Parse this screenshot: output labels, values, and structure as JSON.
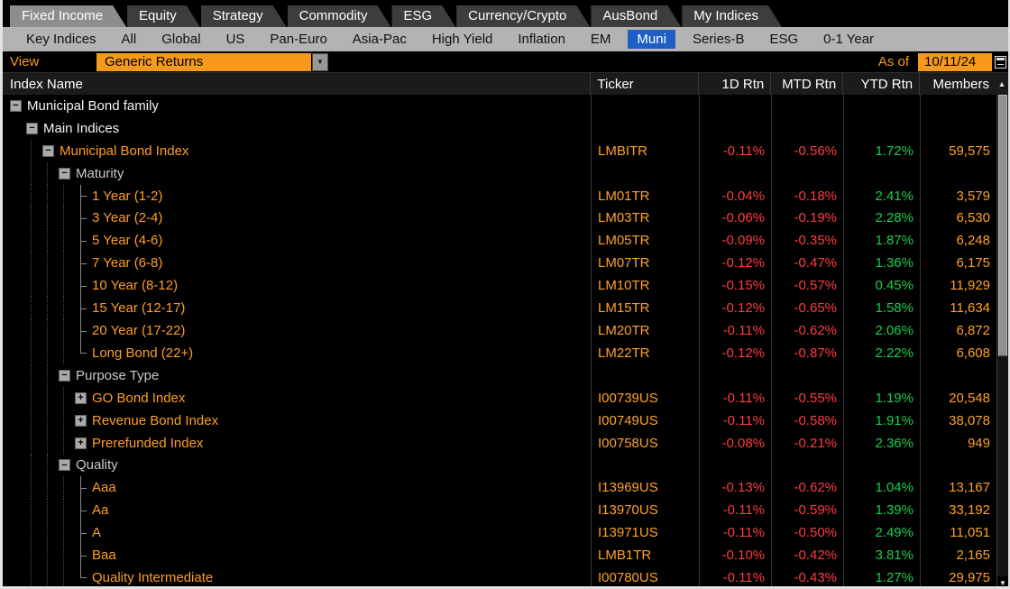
{
  "tabs": {
    "items": [
      {
        "label": "Fixed Income",
        "active": true
      },
      {
        "label": "Equity",
        "active": false
      },
      {
        "label": "Strategy",
        "active": false
      },
      {
        "label": "Commodity",
        "active": false
      },
      {
        "label": "ESG",
        "active": false
      },
      {
        "label": "Currency/Crypto",
        "active": false
      },
      {
        "label": "AusBond",
        "active": false
      },
      {
        "label": "My Indices",
        "active": false
      }
    ]
  },
  "subnav": {
    "items": [
      {
        "label": "Key Indices",
        "selected": false
      },
      {
        "label": "All",
        "selected": false
      },
      {
        "label": "Global",
        "selected": false
      },
      {
        "label": "US",
        "selected": false
      },
      {
        "label": "Pan-Euro",
        "selected": false
      },
      {
        "label": "Asia-Pac",
        "selected": false
      },
      {
        "label": "High Yield",
        "selected": false
      },
      {
        "label": "Inflation",
        "selected": false
      },
      {
        "label": "EM",
        "selected": false
      },
      {
        "label": "Muni",
        "selected": true
      },
      {
        "label": "Series-B",
        "selected": false
      },
      {
        "label": "ESG",
        "selected": false
      },
      {
        "label": "0-1 Year",
        "selected": false
      }
    ]
  },
  "toolbar": {
    "view_label": "View",
    "view_value": "Generic Returns",
    "as_of_label": "As of",
    "as_of_date": "10/11/24"
  },
  "table": {
    "columns": {
      "name": "Index Name",
      "ticker": "Ticker",
      "d1": "1D Rtn",
      "mtd": "MTD Rtn",
      "ytd": "YTD Rtn",
      "members": "Members",
      "sort_indicator": "▲"
    },
    "rows": [
      {
        "level": 0,
        "icon": "minus",
        "style": "family",
        "label": "Municipal Bond family",
        "ticker": "",
        "d1": "",
        "mtd": "",
        "ytd": "",
        "members": ""
      },
      {
        "level": 1,
        "icon": "minus",
        "style": "family",
        "label": "Main Indices",
        "ticker": "",
        "d1": "",
        "mtd": "",
        "ytd": "",
        "members": ""
      },
      {
        "level": 2,
        "icon": "minus",
        "style": "index",
        "label": "Municipal Bond Index",
        "ticker": "LMBITR",
        "d1": "-0.11%",
        "mtd": "-0.56%",
        "ytd": "1.72%",
        "members": "59,575"
      },
      {
        "level": 3,
        "icon": "minus",
        "style": "group",
        "label": "Maturity",
        "ticker": "",
        "d1": "",
        "mtd": "",
        "ytd": "",
        "members": ""
      },
      {
        "level": 4,
        "icon": "branch",
        "style": "index",
        "label": "1 Year (1-2)",
        "ticker": "LM01TR",
        "d1": "-0.04%",
        "mtd": "-0.18%",
        "ytd": "2.41%",
        "members": "3,579"
      },
      {
        "level": 4,
        "icon": "branch",
        "style": "index",
        "label": "3 Year (2-4)",
        "ticker": "LM03TR",
        "d1": "-0.06%",
        "mtd": "-0.19%",
        "ytd": "2.28%",
        "members": "6,530"
      },
      {
        "level": 4,
        "icon": "branch",
        "style": "index",
        "label": "5 Year (4-6)",
        "ticker": "LM05TR",
        "d1": "-0.09%",
        "mtd": "-0.35%",
        "ytd": "1.87%",
        "members": "6,248"
      },
      {
        "level": 4,
        "icon": "branch",
        "style": "index",
        "label": "7 Year (6-8)",
        "ticker": "LM07TR",
        "d1": "-0.12%",
        "mtd": "-0.47%",
        "ytd": "1.36%",
        "members": "6,175"
      },
      {
        "level": 4,
        "icon": "branch",
        "style": "index",
        "label": "10 Year (8-12)",
        "ticker": "LM10TR",
        "d1": "-0.15%",
        "mtd": "-0.57%",
        "ytd": "0.45%",
        "members": "11,929"
      },
      {
        "level": 4,
        "icon": "branch",
        "style": "index",
        "label": "15 Year (12-17)",
        "ticker": "LM15TR",
        "d1": "-0.12%",
        "mtd": "-0.65%",
        "ytd": "1.58%",
        "members": "11,634"
      },
      {
        "level": 4,
        "icon": "branch",
        "style": "index",
        "label": "20 Year (17-22)",
        "ticker": "LM20TR",
        "d1": "-0.11%",
        "mtd": "-0.62%",
        "ytd": "2.06%",
        "members": "6,872"
      },
      {
        "level": 4,
        "icon": "branch-end",
        "style": "index",
        "label": "Long Bond (22+)",
        "ticker": "LM22TR",
        "d1": "-0.12%",
        "mtd": "-0.87%",
        "ytd": "2.22%",
        "members": "6,608"
      },
      {
        "level": 3,
        "icon": "minus",
        "style": "group",
        "label": "Purpose Type",
        "ticker": "",
        "d1": "",
        "mtd": "",
        "ytd": "",
        "members": ""
      },
      {
        "level": 4,
        "icon": "plus",
        "style": "index",
        "label": "GO Bond Index",
        "ticker": "I00739US",
        "d1": "-0.11%",
        "mtd": "-0.55%",
        "ytd": "1.19%",
        "members": "20,548"
      },
      {
        "level": 4,
        "icon": "plus",
        "style": "index",
        "label": "Revenue Bond Index",
        "ticker": "I00749US",
        "d1": "-0.11%",
        "mtd": "-0.58%",
        "ytd": "1.91%",
        "members": "38,078"
      },
      {
        "level": 4,
        "icon": "plus",
        "style": "index",
        "label": "Prerefunded Index",
        "ticker": "I00758US",
        "d1": "-0.08%",
        "mtd": "-0.21%",
        "ytd": "2.36%",
        "members": "949"
      },
      {
        "level": 3,
        "icon": "minus",
        "style": "group",
        "label": "Quality",
        "ticker": "",
        "d1": "",
        "mtd": "",
        "ytd": "",
        "members": ""
      },
      {
        "level": 4,
        "icon": "branch",
        "style": "index",
        "label": "Aaa",
        "ticker": "I13969US",
        "d1": "-0.13%",
        "mtd": "-0.62%",
        "ytd": "1.04%",
        "members": "13,167"
      },
      {
        "level": 4,
        "icon": "branch",
        "style": "index",
        "label": "Aa",
        "ticker": "I13970US",
        "d1": "-0.11%",
        "mtd": "-0.59%",
        "ytd": "1.39%",
        "members": "33,192"
      },
      {
        "level": 4,
        "icon": "branch",
        "style": "index",
        "label": "A",
        "ticker": "I13971US",
        "d1": "-0.11%",
        "mtd": "-0.50%",
        "ytd": "2.49%",
        "members": "11,051"
      },
      {
        "level": 4,
        "icon": "branch",
        "style": "index",
        "label": "Baa",
        "ticker": "LMB1TR",
        "d1": "-0.10%",
        "mtd": "-0.42%",
        "ytd": "3.81%",
        "members": "2,165"
      },
      {
        "level": 4,
        "icon": "branch-end",
        "style": "index",
        "label": "Quality Intermediate",
        "ticker": "I00780US",
        "d1": "-0.11%",
        "mtd": "-0.43%",
        "ytd": "1.27%",
        "members": "29,975"
      }
    ]
  },
  "scrollbar": {
    "down_arrow": "▼"
  },
  "colors": {
    "accent_orange": "#f6991d",
    "text_orange": "#ff9d23",
    "negative_red": "#ff3b3f",
    "positive_green": "#17cf4d",
    "selected_blue": "#1d5fc4",
    "background": "#000000"
  }
}
